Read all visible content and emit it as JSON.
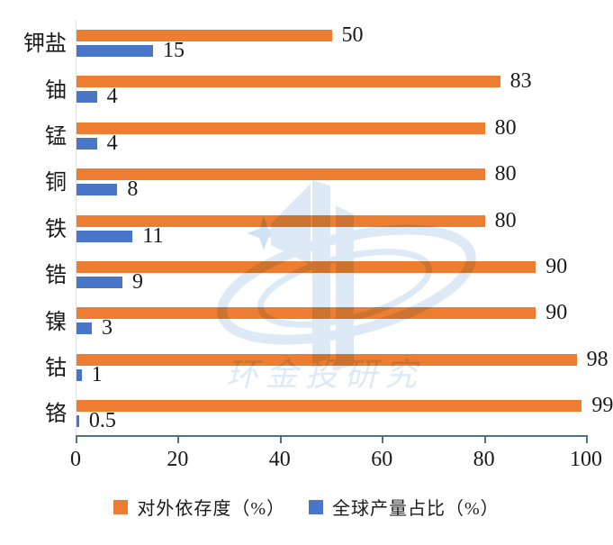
{
  "chart_data": {
    "type": "bar",
    "orientation": "horizontal",
    "title": "",
    "categories": [
      "钾盐",
      "铀",
      "锰",
      "铜",
      "铁",
      "锆",
      "镍",
      "钴",
      "铬"
    ],
    "series": [
      {
        "name": "对外依存度（%）",
        "color": "#ED7D31",
        "values": [
          50,
          83,
          80,
          80,
          80,
          90,
          90,
          98,
          99
        ]
      },
      {
        "name": "全球产量占比（%）",
        "color": "#4A76C9",
        "values": [
          15,
          4,
          4,
          8,
          11,
          9,
          3,
          1,
          0.5
        ]
      }
    ],
    "xlim": [
      0,
      100
    ],
    "x_ticks": [
      "0",
      "20",
      "40",
      "60",
      "80",
      "100"
    ],
    "grid": false,
    "legend_position": "bottom",
    "data_labels": true
  },
  "axis": {
    "line_color": "#51708F",
    "category_line_color": "#E2E2E2"
  },
  "legend": {
    "items": [
      {
        "label": "对外依存度（%）",
        "color": "#ED7D31"
      },
      {
        "label": "全球产量占比（%）",
        "color": "#4A76C9"
      }
    ]
  },
  "watermark": {
    "text": "环金投研究",
    "logo_color": "#BCD6EE",
    "star_color": "#A3C6E9",
    "text_color": "#BAD4EE"
  }
}
